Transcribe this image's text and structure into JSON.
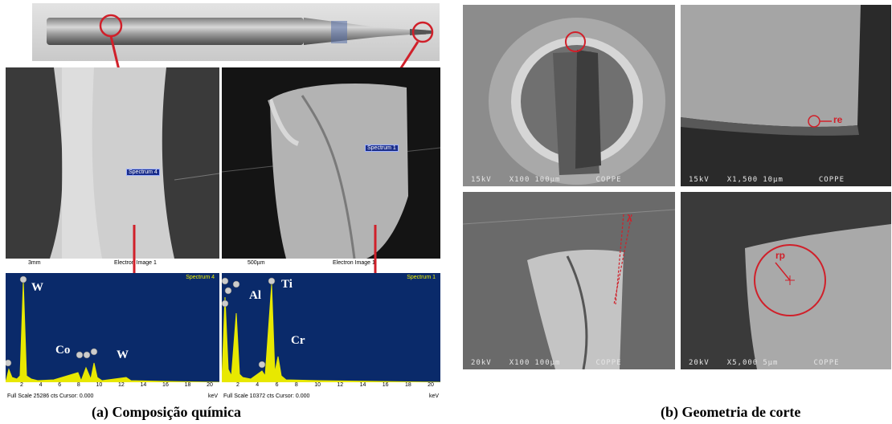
{
  "left": {
    "spectra": [
      {
        "marker_label": "Spectrum 4",
        "scale_label": "3mm",
        "image_label": "Electron Image 1",
        "panel_label": "Spectrum 4",
        "peaks": [
          "W",
          "Co",
          "W"
        ],
        "footer": "Full Scale 25286 cts Cursor: 0.000",
        "ticks": [
          "2",
          "4",
          "6",
          "8",
          "10",
          "12",
          "14",
          "16",
          "18",
          "20"
        ],
        "unit": "keV"
      },
      {
        "marker_label": "Spectrum 1",
        "scale_label": "500µm",
        "image_label": "Electron Image 1",
        "panel_label": "Spectrum 1",
        "peaks": [
          "Al",
          "Ti",
          "Cr"
        ],
        "footer": "Full Scale 10372 cts Cursor: 0.000",
        "ticks": [
          "2",
          "4",
          "6",
          "8",
          "10",
          "12",
          "14",
          "16",
          "18",
          "20"
        ],
        "unit": "keV"
      }
    ],
    "caption": "(a) Composição química"
  },
  "right": {
    "images": [
      {
        "voltage": "15kV",
        "mag": "X100",
        "scale": "100µm",
        "org": "COPPE"
      },
      {
        "voltage": "15kV",
        "mag": "X1,500",
        "scale": "10µm",
        "org": "COPPE",
        "annotation": "re"
      },
      {
        "voltage": "20kV",
        "mag": "X100",
        "scale": "100µm",
        "org": "COPPE",
        "annotation": "λ"
      },
      {
        "voltage": "20kV",
        "mag": "X5,000",
        "scale": "5µm",
        "org": "COPPE",
        "annotation": "rp"
      }
    ],
    "caption": "(b) Geometria de corte"
  },
  "colors": {
    "annotation": "#d0202a",
    "spectrum_bg": "#0a2a6a",
    "spectrum_peak": "#e8e800"
  }
}
